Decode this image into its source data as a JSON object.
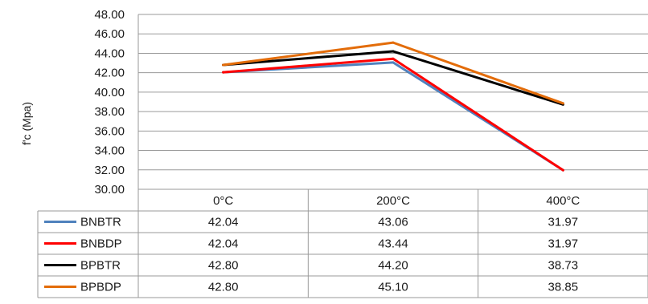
{
  "chart_data": {
    "type": "line",
    "ylabel": "f'c (Mpa)",
    "ylim": [
      30,
      48
    ],
    "yticks": [
      "30.00",
      "32.00",
      "34.00",
      "36.00",
      "38.00",
      "40.00",
      "42.00",
      "44.00",
      "46.00",
      "48.00"
    ],
    "grid": true,
    "legend": "data-table",
    "categories": [
      "0°C",
      "200°C",
      "400°C"
    ],
    "series": [
      {
        "name": "BNBTR",
        "color": "#4f81bd",
        "values": [
          42.04,
          43.06,
          31.97
        ],
        "labels": [
          "42.04",
          "43.06",
          "31.97"
        ]
      },
      {
        "name": "BNBDP",
        "color": "#ff0000",
        "values": [
          42.04,
          43.44,
          31.97
        ],
        "labels": [
          "42.04",
          "43.44",
          "31.97"
        ]
      },
      {
        "name": "BPBTR",
        "color": "#000000",
        "values": [
          42.8,
          44.2,
          38.73
        ],
        "labels": [
          "42.80",
          "44.20",
          "38.73"
        ]
      },
      {
        "name": "BPBDP",
        "color": "#e36c09",
        "values": [
          42.8,
          45.1,
          38.85
        ],
        "labels": [
          "42.80",
          "45.10",
          "38.85"
        ]
      }
    ]
  }
}
